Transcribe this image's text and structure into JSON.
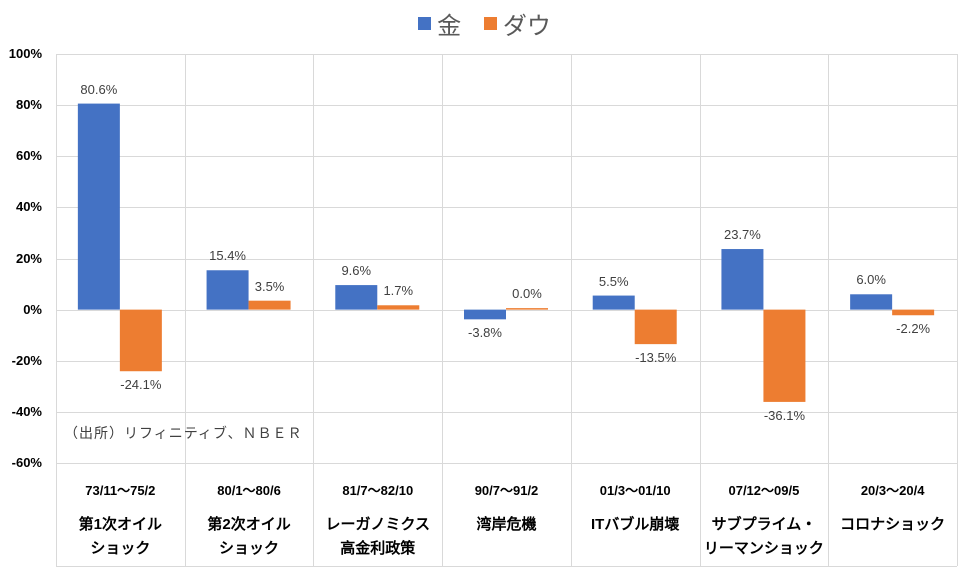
{
  "chart_data": {
    "type": "bar",
    "title": "",
    "xlabel": "",
    "ylabel": "",
    "ylim": [
      -60,
      100
    ],
    "yticks": [
      100,
      80,
      60,
      40,
      20,
      0,
      -20,
      -40,
      -60
    ],
    "ytick_labels": [
      "100%",
      "80%",
      "60%",
      "40%",
      "20%",
      "0%",
      "-20%",
      "-40%",
      "-60%"
    ],
    "grid": true,
    "legend_position": "top",
    "categories": [
      {
        "period": "73/11〜75/2",
        "name_lines": [
          "第1次オイル",
          "ショック"
        ]
      },
      {
        "period": "80/1〜80/6",
        "name_lines": [
          "第2次オイル",
          "ショック"
        ]
      },
      {
        "period": "81/7〜82/10",
        "name_lines": [
          "レーガノミクス",
          "高金利政策"
        ]
      },
      {
        "period": "90/7〜91/2",
        "name_lines": [
          "湾岸危機"
        ]
      },
      {
        "period": "01/3〜01/10",
        "name_lines": [
          "ITバブル崩壊"
        ]
      },
      {
        "period": "07/12〜09/5",
        "name_lines": [
          "サブプライム・",
          "リーマンショック"
        ]
      },
      {
        "period": "20/3〜20/4",
        "name_lines": [
          "コロナショック"
        ]
      }
    ],
    "series": [
      {
        "name": "金",
        "color": "#4472C4",
        "values": [
          80.6,
          15.4,
          9.6,
          -3.8,
          5.5,
          23.7,
          6.0
        ],
        "labels": [
          "80.6%",
          "15.4%",
          "9.6%",
          "-3.8%",
          "5.5%",
          "23.7%",
          "6.0%"
        ]
      },
      {
        "name": "ダウ",
        "color": "#ED7D31",
        "values": [
          -24.1,
          3.5,
          1.7,
          0.0,
          -13.5,
          -36.1,
          -2.2
        ],
        "labels": [
          "-24.1%",
          "3.5%",
          "1.7%",
          "0.0%",
          "-13.5%",
          "-36.1%",
          "-2.2%"
        ]
      }
    ],
    "annotations": [
      "（出所）リフィニティブ、ＮＢＥＲ"
    ]
  },
  "legend": {
    "items": [
      {
        "label": "金",
        "color": "#4472C4"
      },
      {
        "label": "ダウ",
        "color": "#ED7D31"
      }
    ]
  },
  "source_note": "（出所）リフィニティブ、ＮＢＥＲ"
}
